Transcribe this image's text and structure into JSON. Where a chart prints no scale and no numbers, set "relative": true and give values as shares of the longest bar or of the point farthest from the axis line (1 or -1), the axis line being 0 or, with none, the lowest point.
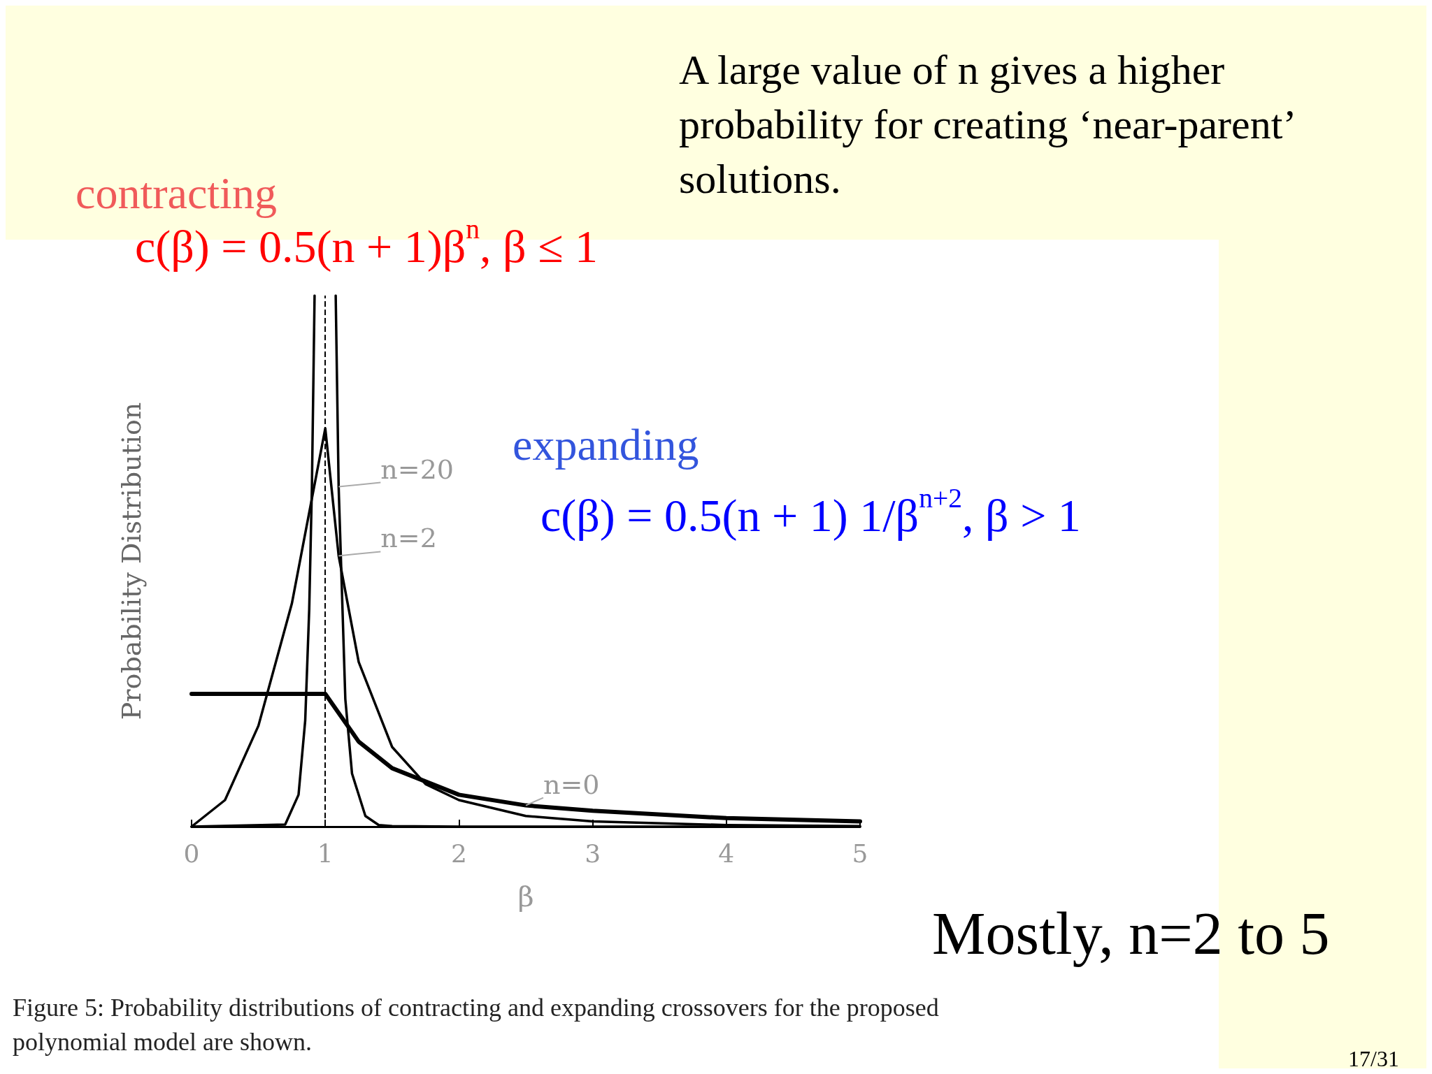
{
  "chart_data": {
    "type": "line",
    "title": "A large value of n gives a higher probability for creating ‘near-parent’ solutions.",
    "xlabel": "β",
    "ylabel": "Probability Distribution",
    "relative": true,
    "xlim": [
      0,
      5
    ],
    "xticks": [
      0,
      1,
      2,
      3,
      4,
      5
    ],
    "marker": "none",
    "line_style": "solid",
    "grid": false,
    "series": [
      {
        "name": "n=20",
        "color": "#000000",
        "x": [
          0,
          0.7,
          0.8,
          0.85,
          0.88,
          0.9,
          0.92,
          1,
          1.078,
          1.1,
          1.15,
          1.2,
          1.3,
          1.4,
          1.5,
          2,
          3,
          5
        ],
        "values": [
          0,
          0.004,
          0.06,
          0.2,
          0.41,
          0.64,
          1,
          null,
          1,
          0.64,
          0.24,
          0.1,
          0.02,
          0.003,
          0.001,
          0,
          0,
          0
        ]
      },
      {
        "name": "n=2",
        "color": "#000000",
        "x": [
          0,
          0.25,
          0.5,
          0.75,
          1,
          1.1,
          1.25,
          1.5,
          1.75,
          2,
          2.5,
          3,
          4,
          5
        ],
        "values": [
          0,
          0.05,
          0.19,
          0.42,
          0.75,
          0.51,
          0.31,
          0.15,
          0.08,
          0.05,
          0.02,
          0.01,
          0.003,
          0.001
        ]
      },
      {
        "name": "n=0",
        "color": "#000000",
        "x": [
          0,
          1,
          1.25,
          1.4,
          1.5,
          2,
          2.5,
          3,
          4,
          5
        ],
        "values": [
          0.25,
          0.25,
          0.16,
          0.13,
          0.11,
          0.06,
          0.04,
          0.03,
          0.016,
          0.01
        ]
      }
    ],
    "ref_lines": [
      {
        "axis": "x",
        "value": 1,
        "label": null,
        "color": "#000000",
        "line_style": "dashed"
      }
    ],
    "annotations": [
      "contracting",
      "c(β) = 0.5(n + 1)β$^{n}$, β ≤ 1",
      "expanding",
      "c(β) = 0.5(n + 1) 1/β$^{n+2}$, β > 1",
      "Mostly, n=2 to 5",
      "Figure 5: Probability distributions of contracting and expanding crossovers for the proposed polynomial model are shown.",
      "17/31"
    ]
  }
}
